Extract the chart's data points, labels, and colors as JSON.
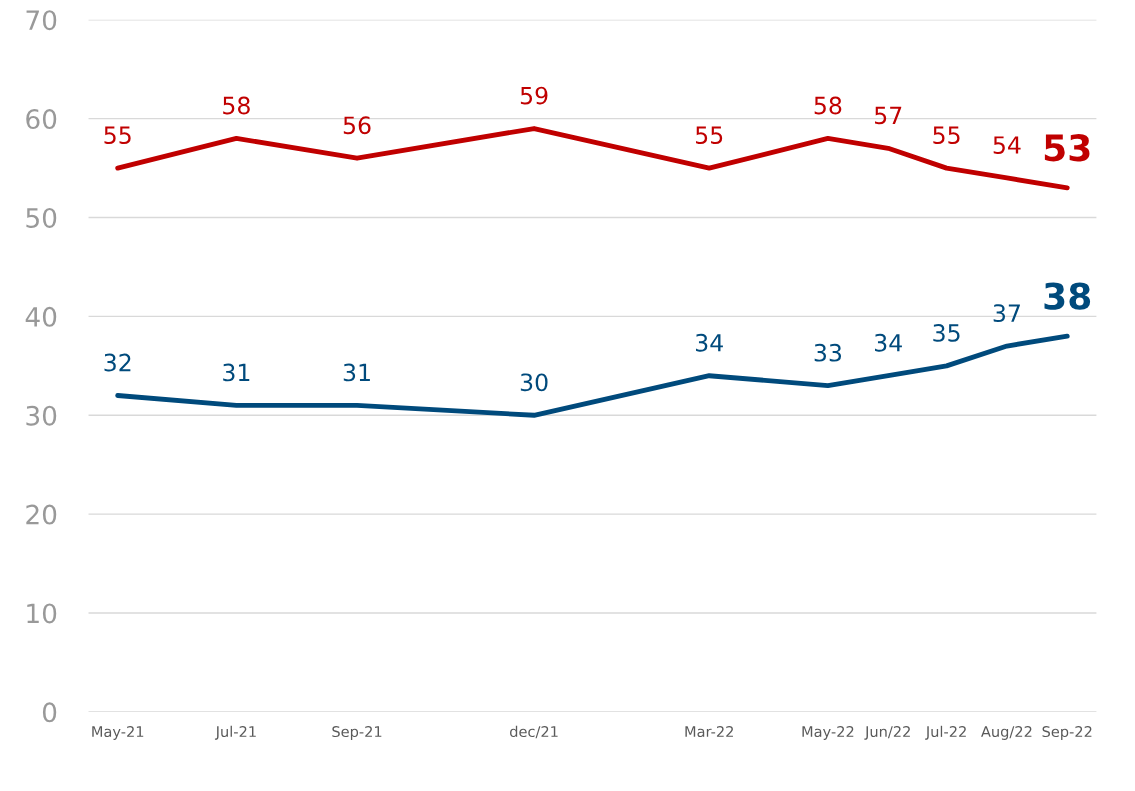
{
  "chart_data": {
    "type": "line",
    "x": [
      "2021-05",
      "2021-07",
      "2021-09",
      "2021-12",
      "2022-03",
      "2022-05",
      "2022-06",
      "2022-07",
      "2022-08",
      "2022-09"
    ],
    "series": [
      {
        "color": "#c00000",
        "values": [
          55,
          58,
          56,
          59,
          55,
          58,
          57,
          55,
          54,
          53
        ]
      },
      {
        "color": "#004a7c",
        "values": [
          32,
          31,
          31,
          30,
          34,
          33,
          34,
          35,
          37,
          38
        ]
      }
    ],
    "xlim": [
      "2021-04-16",
      "2022-09-16"
    ],
    "xticks": [
      {
        "value": "2021-05",
        "label": "May-21"
      },
      {
        "value": "2021-07",
        "label": "Jul-21"
      },
      {
        "value": "2021-09",
        "label": "Sep-21"
      },
      {
        "value": "2021-12",
        "label": "dec/21"
      },
      {
        "value": "2022-03",
        "label": "Mar-22"
      },
      {
        "value": "2022-05",
        "label": "May-22"
      },
      {
        "value": "2022-06",
        "label": "Jun/22"
      },
      {
        "value": "2022-07",
        "label": "Jul-22"
      },
      {
        "value": "2022-08",
        "label": "Aug/22"
      },
      {
        "value": "2022-09",
        "label": "Sep-22"
      }
    ],
    "ylim": [
      0,
      70
    ],
    "yticks": [
      0,
      10,
      20,
      30,
      40,
      50,
      60,
      70
    ],
    "grid": "y",
    "data_labels": true,
    "marker": "none",
    "line_style": "solid",
    "legend": false
  }
}
